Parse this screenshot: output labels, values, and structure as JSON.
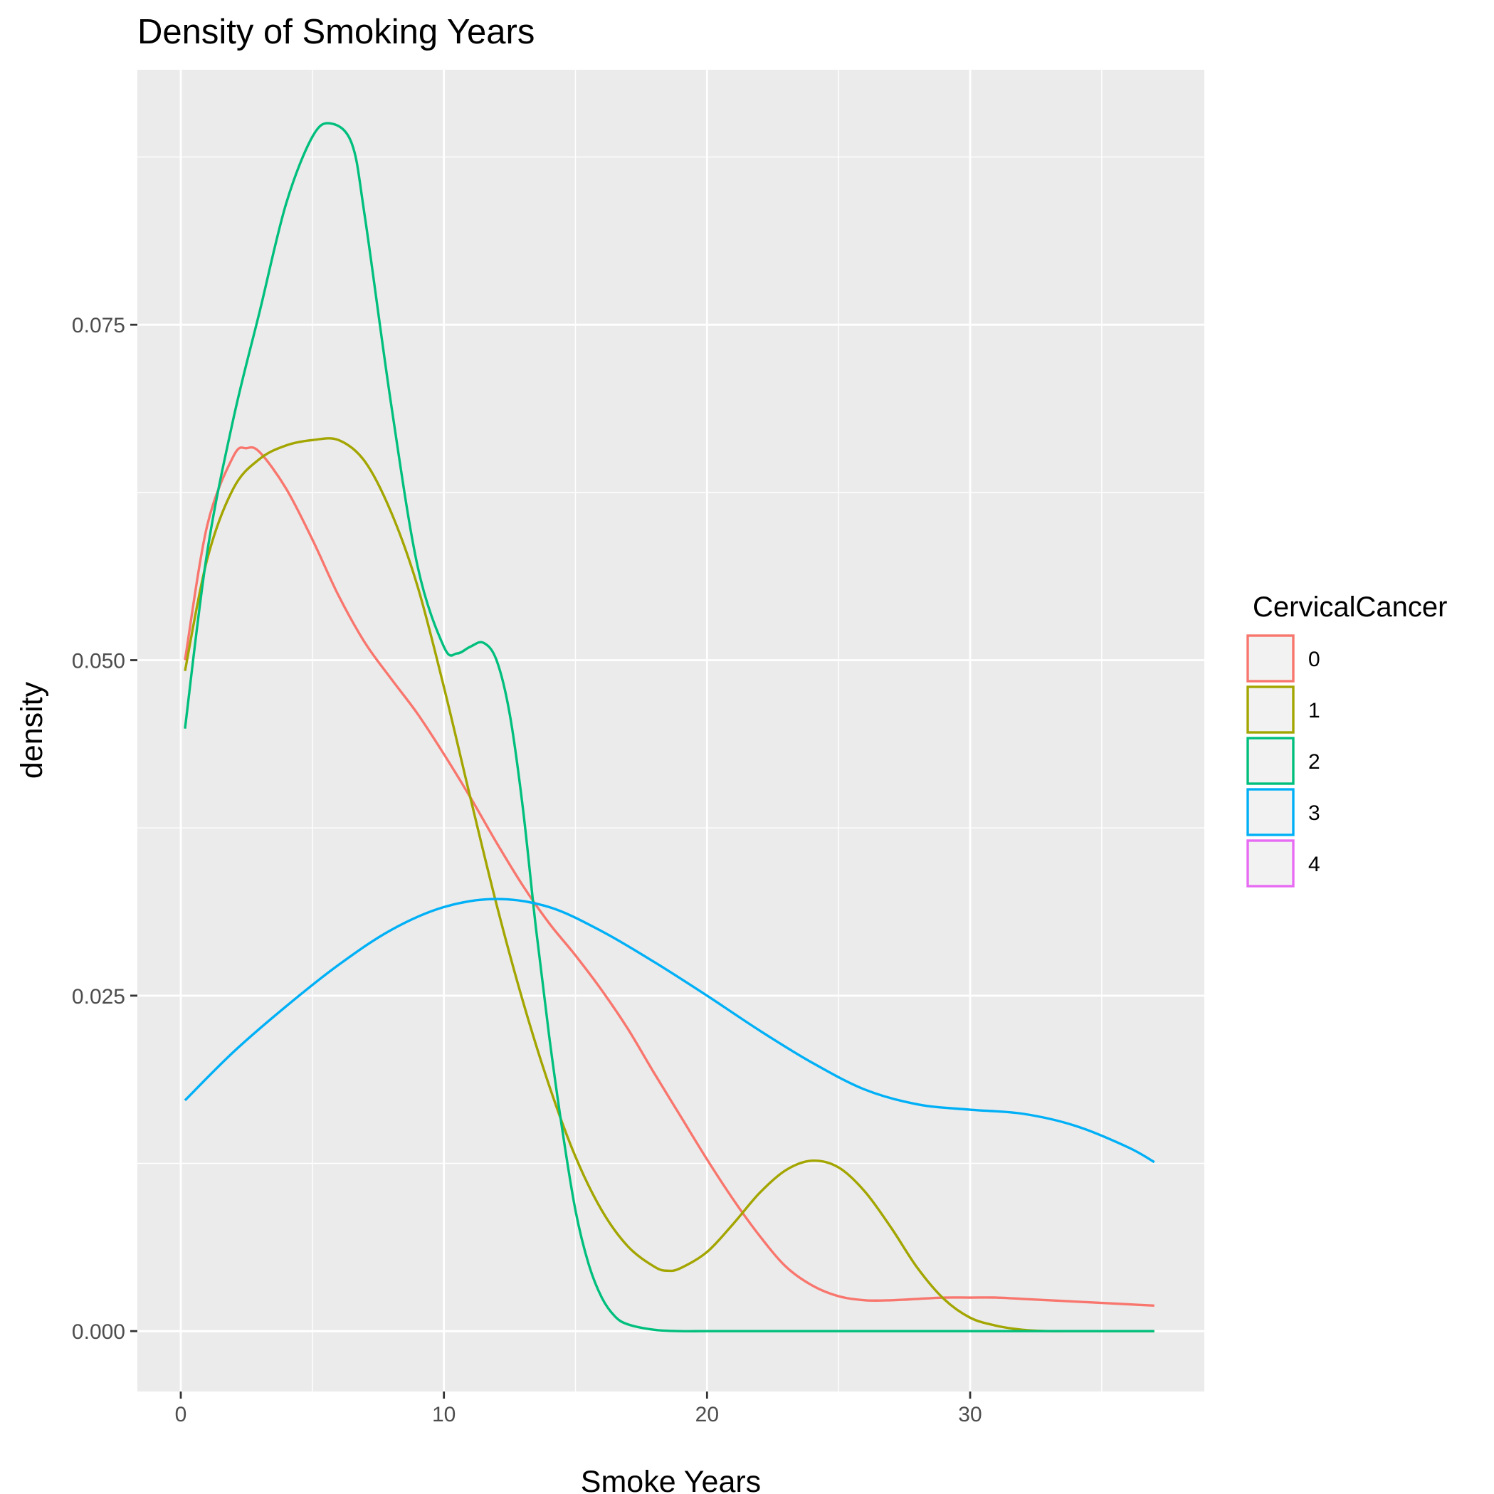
{
  "chart_data": {
    "type": "line",
    "title": "Density of Smoking Years",
    "xlabel": "Smoke Years",
    "ylabel": "density",
    "xlim": [
      -1.65,
      38.9
    ],
    "ylim": [
      -0.0045,
      0.094
    ],
    "x_ticks": [
      0,
      10,
      20,
      30
    ],
    "x_tick_labels": [
      "0",
      "10",
      "20",
      "30"
    ],
    "x_minor": [
      5,
      15,
      25,
      35
    ],
    "y_ticks": [
      0,
      0.025,
      0.05,
      0.075
    ],
    "y_tick_labels": [
      "0.000",
      "0.025",
      "0.050",
      "0.075"
    ],
    "y_minor": [
      0.0125,
      0.0375,
      0.0625,
      0.0875
    ],
    "grid": true,
    "legend": {
      "title": "CervicalCancer",
      "position": "right"
    },
    "series": [
      {
        "name": "0",
        "color": "#F8766D",
        "x": [
          0.16,
          1,
          2,
          2.5,
          3,
          4,
          5,
          6,
          7,
          8,
          9,
          10,
          11,
          12,
          13,
          14,
          15,
          16,
          17,
          18,
          19,
          20,
          21,
          22,
          23,
          24,
          25,
          26,
          27,
          28,
          29,
          30,
          31,
          32,
          33,
          34,
          35,
          36,
          37
        ],
        "values": [
          0.05,
          0.06,
          0.0652,
          0.0658,
          0.0655,
          0.0628,
          0.059,
          0.0548,
          0.0513,
          0.0486,
          0.046,
          0.043,
          0.0398,
          0.0364,
          0.0332,
          0.0304,
          0.028,
          0.0254,
          0.0225,
          0.0192,
          0.016,
          0.0128,
          0.0098,
          0.0071,
          0.0048,
          0.0034,
          0.0026,
          0.0023,
          0.0023,
          0.0024,
          0.0025,
          0.0025,
          0.0025,
          0.0024,
          0.0023,
          0.0022,
          0.0021,
          0.002,
          0.0019
        ]
      },
      {
        "name": "1",
        "color": "#A3A500",
        "x": [
          0.16,
          1,
          2,
          3,
          4,
          5,
          6,
          7,
          8,
          9,
          10,
          11,
          12,
          13,
          14,
          15,
          16,
          17,
          18,
          18.5,
          19,
          20,
          21,
          22,
          23,
          24,
          25,
          26,
          27,
          28,
          29,
          30,
          31,
          32,
          33,
          34,
          35,
          36,
          37
        ],
        "values": [
          0.0492,
          0.0575,
          0.0628,
          0.065,
          0.066,
          0.0664,
          0.0664,
          0.0648,
          0.061,
          0.0555,
          0.048,
          0.0398,
          0.0318,
          0.0246,
          0.0183,
          0.013,
          0.009,
          0.0063,
          0.0048,
          0.0045,
          0.0047,
          0.0059,
          0.008,
          0.0103,
          0.012,
          0.0127,
          0.0122,
          0.0104,
          0.0077,
          0.0047,
          0.0024,
          0.001,
          0.0004,
          0.0001,
          0.0,
          0.0,
          0.0,
          0.0,
          0.0
        ]
      },
      {
        "name": "2",
        "color": "#00BF7D",
        "x": [
          0.16,
          1,
          2,
          3,
          4,
          5,
          5.7,
          6.5,
          7,
          8,
          9,
          10,
          10.5,
          11,
          11.5,
          12,
          12.5,
          13,
          13.5,
          14,
          14.5,
          15,
          15.5,
          16,
          16.5,
          17,
          18,
          19,
          20,
          22,
          25,
          30,
          37
        ],
        "values": [
          0.0449,
          0.058,
          0.068,
          0.076,
          0.084,
          0.089,
          0.09,
          0.0885,
          0.083,
          0.069,
          0.057,
          0.051,
          0.0505,
          0.051,
          0.0513,
          0.05,
          0.046,
          0.039,
          0.03,
          0.022,
          0.015,
          0.009,
          0.005,
          0.0025,
          0.0011,
          0.0005,
          0.0001,
          0.0,
          0.0,
          0.0,
          0.0,
          0.0,
          0.0
        ]
      },
      {
        "name": "3",
        "color": "#00B0F6",
        "x": [
          0.16,
          2,
          4,
          6,
          8,
          10,
          12,
          14,
          16,
          18,
          20,
          22,
          24,
          26,
          28,
          30,
          32,
          34,
          36,
          37
        ],
        "values": [
          0.0172,
          0.0208,
          0.0242,
          0.0273,
          0.0299,
          0.0316,
          0.0322,
          0.0316,
          0.0298,
          0.0275,
          0.025,
          0.0224,
          0.02,
          0.018,
          0.0169,
          0.0165,
          0.0162,
          0.0153,
          0.0137,
          0.0126
        ]
      },
      {
        "name": "4",
        "color": "#E76BF3",
        "x": [],
        "values": []
      }
    ]
  }
}
